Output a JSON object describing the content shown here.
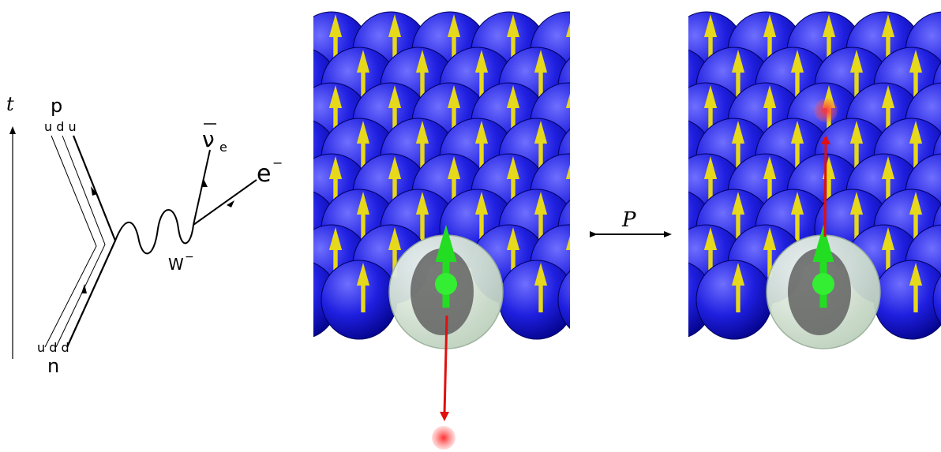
{
  "axis_label": "t",
  "proton": {
    "label": "p",
    "quarks": "u d u"
  },
  "neutron": {
    "label": "n",
    "quarks": "u d d"
  },
  "boson": {
    "label": "W",
    "charge": "−"
  },
  "antineutrino": {
    "label": "ν",
    "subscript": "e"
  },
  "electron": {
    "label": "e",
    "charge": "−"
  },
  "operator": "P"
}
